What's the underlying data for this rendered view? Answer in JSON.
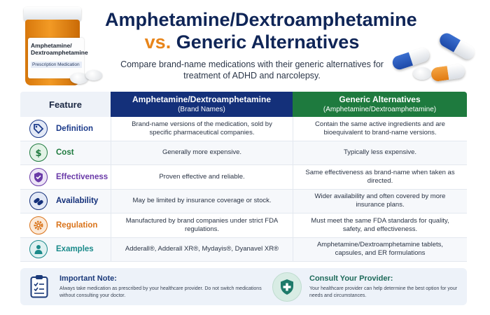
{
  "header": {
    "title_line1": "Amphetamine/Dextroamphetamine",
    "title_vs": "vs.",
    "title_line2": "Generic Alternatives",
    "subtitle": "Compare brand-name medications with their generic alternatives for treatment of ADHD and narcolepsy."
  },
  "bottle": {
    "label_name": "Amphetamine/ Dextroamphetamine",
    "label_sub": "Prescription Medication"
  },
  "table": {
    "head_feature": "Feature",
    "head_brand": "Amphetamine/Dextroamphetamine",
    "head_brand_sub": "(Brand Names)",
    "head_generic": "Generic Alternatives",
    "head_generic_sub": "(Amphetamine/Dextroamphetamine)",
    "rows": [
      {
        "feature": "Definition",
        "icon": "tag-icon",
        "color": "#1b3a8a",
        "bg": "#e3e9f6",
        "brand": "Brand-name versions of the medication, sold by specific pharmaceutical companies.",
        "generic": "Contain the same active ingredients and are bioequivalent to brand-name versions."
      },
      {
        "feature": "Cost",
        "icon": "dollar-icon",
        "color": "#1e7a3e",
        "bg": "#e2f2e6",
        "brand": "Generally more expensive.",
        "generic": "Typically less expensive."
      },
      {
        "feature": "Effectiveness",
        "icon": "shield-check-icon",
        "color": "#6a3aa8",
        "bg": "#ece4f6",
        "brand": "Proven effective and reliable.",
        "generic": "Same effectiveness as brand-name when taken as directed."
      },
      {
        "feature": "Availability",
        "icon": "capsules-icon",
        "color": "#14307a",
        "bg": "#e3e9f6",
        "brand": "May be limited by insurance coverage or stock.",
        "generic": "Wider availability and often covered by more insurance plans."
      },
      {
        "feature": "Regulation",
        "icon": "gear-icon",
        "color": "#d9731a",
        "bg": "#fbe9d8",
        "brand": "Manufactured by brand companies under strict FDA regulations.",
        "generic": "Must meet the same FDA standards for quality, safety, and effectiveness."
      },
      {
        "feature": "Examples",
        "icon": "person-icon",
        "color": "#1a8a8a",
        "bg": "#dff1f1",
        "brand": "Adderall®, Adderall XR®, Mydayis®, Dyanavel XR®",
        "generic": "Amphetamine/Dextroamphetamine tablets, capsules, and ER formulations"
      }
    ]
  },
  "notes": {
    "important_title": "Important Note:",
    "important_text": "Always take medication as prescribed by your healthcare provider. Do not switch medications without consulting your doctor.",
    "consult_title": "Consult Your Provider:",
    "consult_text": "Your healthcare provider can help determine the best option for your needs and circumstances."
  }
}
